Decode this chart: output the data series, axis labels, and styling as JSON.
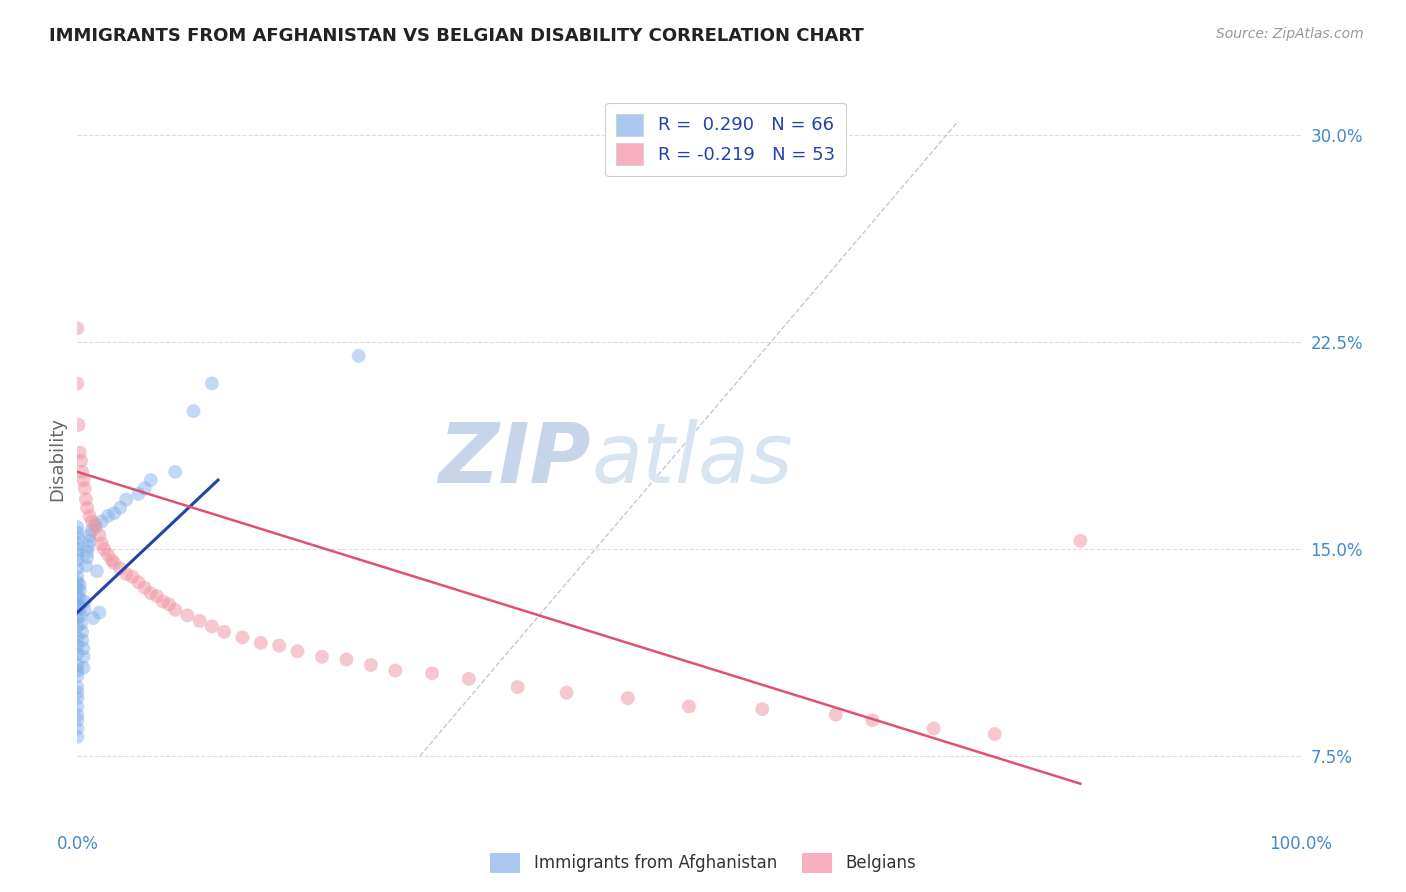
{
  "title": "IMMIGRANTS FROM AFGHANISTAN VS BELGIAN DISABILITY CORRELATION CHART",
  "source": "Source: ZipAtlas.com",
  "ylabel": "Disability",
  "xlim": [
    0.0,
    1.0
  ],
  "ylim": [
    0.05,
    0.315
  ],
  "ytick_positions": [
    0.075,
    0.15,
    0.225,
    0.3
  ],
  "ytick_labels": [
    "7.5%",
    "15.0%",
    "22.5%",
    "30.0%"
  ],
  "scatter_afghanistan": {
    "color": "#7aaae8",
    "alpha": 0.45,
    "size": 100,
    "x": [
      0.0,
      0.0,
      0.0,
      0.0,
      0.0,
      0.0,
      0.0,
      0.0,
      0.0,
      0.0,
      0.0,
      0.0,
      0.0,
      0.0,
      0.0,
      0.0,
      0.0,
      0.0,
      0.0,
      0.0,
      0.0,
      0.0,
      0.0,
      0.0,
      0.0,
      0.0,
      0.0,
      0.0,
      0.0,
      0.0,
      0.002,
      0.002,
      0.002,
      0.002,
      0.003,
      0.003,
      0.004,
      0.004,
      0.005,
      0.005,
      0.005,
      0.006,
      0.006,
      0.007,
      0.008,
      0.008,
      0.009,
      0.01,
      0.01,
      0.012,
      0.013,
      0.015,
      0.016,
      0.018,
      0.02,
      0.025,
      0.03,
      0.035,
      0.04,
      0.05,
      0.055,
      0.06,
      0.08,
      0.095,
      0.11,
      0.23
    ],
    "y": [
      0.13,
      0.133,
      0.136,
      0.138,
      0.128,
      0.125,
      0.122,
      0.118,
      0.115,
      0.112,
      0.108,
      0.106,
      0.104,
      0.1,
      0.098,
      0.096,
      0.093,
      0.09,
      0.088,
      0.085,
      0.082,
      0.14,
      0.143,
      0.146,
      0.148,
      0.15,
      0.152,
      0.154,
      0.156,
      0.158,
      0.129,
      0.132,
      0.135,
      0.137,
      0.126,
      0.123,
      0.12,
      0.117,
      0.114,
      0.111,
      0.107,
      0.131,
      0.128,
      0.144,
      0.147,
      0.149,
      0.151,
      0.153,
      0.155,
      0.157,
      0.125,
      0.159,
      0.142,
      0.127,
      0.16,
      0.162,
      0.163,
      0.165,
      0.168,
      0.17,
      0.172,
      0.175,
      0.178,
      0.2,
      0.21,
      0.22
    ]
  },
  "scatter_belgians": {
    "color": "#f090a0",
    "alpha": 0.5,
    "size": 100,
    "x": [
      0.0,
      0.0,
      0.001,
      0.002,
      0.003,
      0.004,
      0.005,
      0.006,
      0.007,
      0.008,
      0.01,
      0.012,
      0.015,
      0.018,
      0.02,
      0.022,
      0.025,
      0.028,
      0.03,
      0.035,
      0.04,
      0.045,
      0.05,
      0.055,
      0.06,
      0.065,
      0.07,
      0.075,
      0.08,
      0.09,
      0.1,
      0.11,
      0.12,
      0.135,
      0.15,
      0.165,
      0.18,
      0.2,
      0.22,
      0.24,
      0.26,
      0.29,
      0.32,
      0.36,
      0.4,
      0.45,
      0.5,
      0.56,
      0.62,
      0.65,
      0.7,
      0.75,
      0.82
    ],
    "y": [
      0.23,
      0.21,
      0.195,
      0.185,
      0.182,
      0.178,
      0.175,
      0.172,
      0.168,
      0.165,
      0.162,
      0.16,
      0.158,
      0.155,
      0.152,
      0.15,
      0.148,
      0.146,
      0.145,
      0.143,
      0.141,
      0.14,
      0.138,
      0.136,
      0.134,
      0.133,
      0.131,
      0.13,
      0.128,
      0.126,
      0.124,
      0.122,
      0.12,
      0.118,
      0.116,
      0.115,
      0.113,
      0.111,
      0.11,
      0.108,
      0.106,
      0.105,
      0.103,
      0.1,
      0.098,
      0.096,
      0.093,
      0.092,
      0.09,
      0.088,
      0.085,
      0.083,
      0.153
    ]
  },
  "trendline_afghanistan": {
    "color": "#2244aa",
    "linewidth": 2.2,
    "x_start": 0.0,
    "x_end": 0.115,
    "y_start": 0.127,
    "y_end": 0.175
  },
  "trendline_belgians": {
    "color": "#e05070",
    "linewidth": 1.8,
    "x_start": 0.0,
    "x_end": 0.82,
    "y_start": 0.178,
    "y_end": 0.065
  },
  "diagonal_line": {
    "color": "#bbccdd",
    "linewidth": 1.0,
    "linestyle": "--",
    "x_start": 0.28,
    "x_end": 0.72,
    "y_start": 0.075,
    "y_end": 0.305
  },
  "watermark_zip": "ZIP",
  "watermark_atlas": "atlas",
  "watermark_color": "#dde5f0",
  "background_color": "#ffffff",
  "grid_color": "#dddddd",
  "title_color": "#222222",
  "axis_label_color": "#666666",
  "tick_label_color": "#4488cc",
  "legend1_label": "R =  0.290   N = 66",
  "legend2_label": "R = -0.219   N = 53",
  "legend_color1": "#aac8f0",
  "legend_color2": "#f8b0c0",
  "bottom_legend1": "Immigrants from Afghanistan",
  "bottom_legend2": "Belgians"
}
